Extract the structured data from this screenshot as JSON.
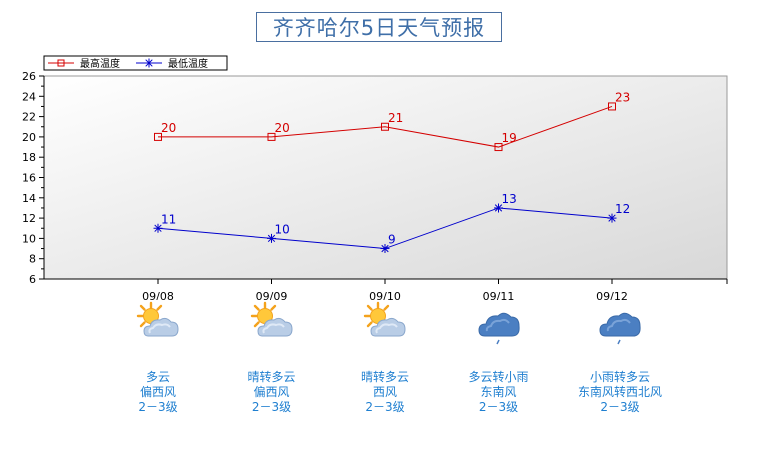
{
  "title": "齐齐哈尔5日天气预报",
  "legend": {
    "high_label": "最高温度",
    "low_label": "最低温度"
  },
  "colors": {
    "high": "#d40000",
    "low": "#0000cc",
    "title": "#3f6fa8",
    "forecast_text": "#1f7fd0",
    "plot_bg_top": "#ffffff",
    "plot_bg_bottom": "#d8d8d8"
  },
  "chart_data": {
    "type": "line",
    "x": [
      "09/08",
      "09/09",
      "09/10",
      "09/11",
      "09/12"
    ],
    "series": [
      {
        "name": "最高温度",
        "values": [
          20,
          20,
          21,
          19,
          23
        ],
        "marker": "square"
      },
      {
        "name": "最低温度",
        "values": [
          11,
          10,
          9,
          13,
          12
        ],
        "marker": "star"
      }
    ],
    "yticks": [
      6,
      8,
      10,
      12,
      14,
      16,
      18,
      20,
      22,
      24,
      26
    ],
    "ylim": [
      6,
      26
    ],
    "xlim": [
      -1,
      4.5
    ],
    "grid": false,
    "legend_position": "top-left"
  },
  "forecast": [
    {
      "date": "09/08",
      "icon": "partly-cloudy-icon",
      "weather": "多云",
      "wind_dir": "偏西风",
      "wind_level": "2－3级"
    },
    {
      "date": "09/09",
      "icon": "partly-cloudy-icon",
      "weather": "晴转多云",
      "wind_dir": "偏西风",
      "wind_level": "2－3级"
    },
    {
      "date": "09/10",
      "icon": "partly-cloudy-icon",
      "weather": "晴转多云",
      "wind_dir": "西风",
      "wind_level": "2－3级"
    },
    {
      "date": "09/11",
      "icon": "rain-cloud-icon",
      "weather": "多云转小雨",
      "wind_dir": "东南风",
      "wind_level": "2－3级"
    },
    {
      "date": "09/12",
      "icon": "rain-cloud-icon",
      "weather": "小雨转多云",
      "wind_dir": "东南风转西北风",
      "wind_level": "2－3级"
    }
  ]
}
